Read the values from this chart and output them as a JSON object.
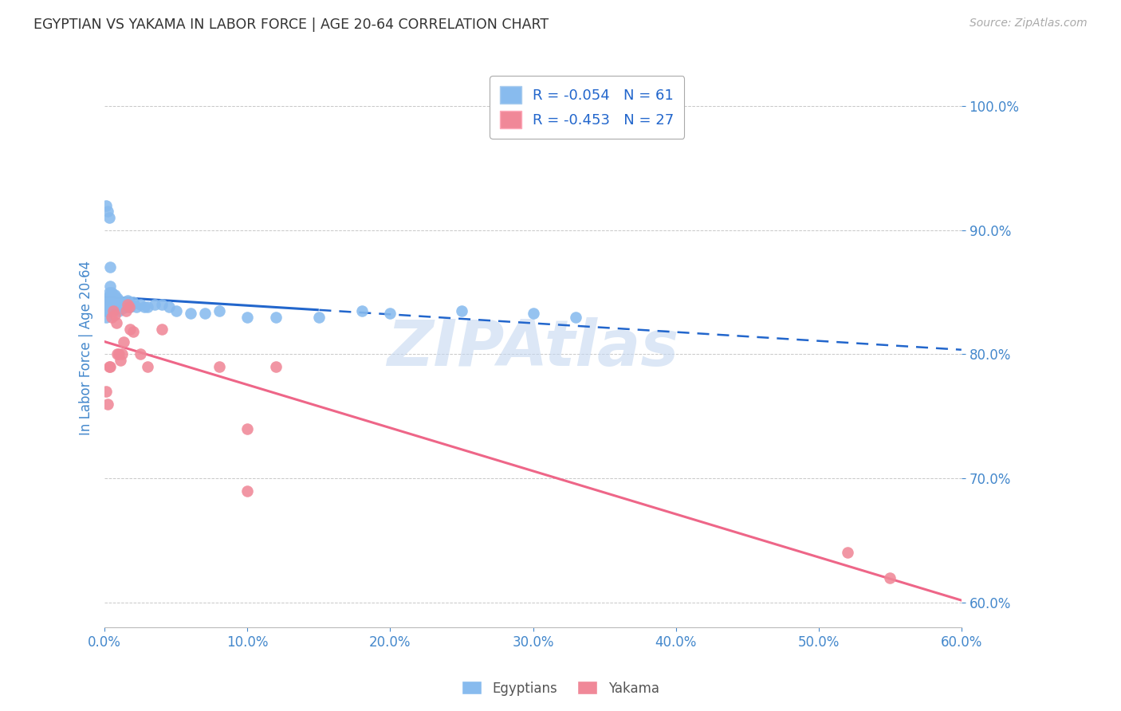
{
  "title": "EGYPTIAN VS YAKAMA IN LABOR FORCE | AGE 20-64 CORRELATION CHART",
  "source": "Source: ZipAtlas.com",
  "ylabel": "In Labor Force | Age 20-64",
  "xlim": [
    0.0,
    0.6
  ],
  "ylim": [
    0.58,
    1.03
  ],
  "yticks": [
    0.6,
    0.7,
    0.8,
    0.9,
    1.0
  ],
  "xticks": [
    0.0,
    0.1,
    0.2,
    0.3,
    0.4,
    0.5,
    0.6
  ],
  "background_color": "#ffffff",
  "grid_color": "#c8c8c8",
  "egyptian_color": "#88bbee",
  "yakama_color": "#f08898",
  "trendline_egyptian_color": "#2266cc",
  "trendline_yakama_color": "#ee6688",
  "watermark_color": "#c5d8f0",
  "legend_text_color": "#2266cc",
  "axis_label_color": "#4488cc",
  "title_color": "#333333",
  "source_color": "#aaaaaa",
  "R_egyptian": -0.054,
  "N_egyptian": 61,
  "R_yakama": -0.453,
  "N_yakama": 27,
  "egyptians_x": [
    0.001,
    0.001,
    0.001,
    0.002,
    0.002,
    0.002,
    0.003,
    0.003,
    0.003,
    0.004,
    0.004,
    0.005,
    0.005,
    0.005,
    0.006,
    0.006,
    0.007,
    0.007,
    0.008,
    0.008,
    0.009,
    0.009,
    0.01,
    0.01,
    0.01,
    0.011,
    0.011,
    0.012,
    0.012,
    0.013,
    0.014,
    0.015,
    0.015,
    0.016,
    0.017,
    0.018,
    0.019,
    0.02,
    0.022,
    0.025,
    0.028,
    0.03,
    0.035,
    0.04,
    0.045,
    0.05,
    0.06,
    0.07,
    0.08,
    0.1,
    0.12,
    0.15,
    0.18,
    0.2,
    0.25,
    0.3,
    0.001,
    0.002,
    0.003,
    0.004,
    0.33
  ],
  "egyptians_y": [
    0.84,
    0.835,
    0.83,
    0.845,
    0.84,
    0.835,
    0.85,
    0.845,
    0.84,
    0.855,
    0.848,
    0.85,
    0.843,
    0.838,
    0.848,
    0.842,
    0.848,
    0.843,
    0.842,
    0.838,
    0.845,
    0.84,
    0.843,
    0.84,
    0.835,
    0.84,
    0.838,
    0.842,
    0.837,
    0.84,
    0.838,
    0.842,
    0.838,
    0.843,
    0.84,
    0.838,
    0.84,
    0.842,
    0.838,
    0.84,
    0.838,
    0.838,
    0.84,
    0.84,
    0.838,
    0.835,
    0.833,
    0.833,
    0.835,
    0.83,
    0.83,
    0.83,
    0.835,
    0.833,
    0.835,
    0.833,
    0.92,
    0.915,
    0.91,
    0.87,
    0.83
  ],
  "yakama_x": [
    0.001,
    0.002,
    0.003,
    0.004,
    0.005,
    0.006,
    0.007,
    0.008,
    0.009,
    0.01,
    0.011,
    0.012,
    0.013,
    0.015,
    0.016,
    0.017,
    0.018,
    0.02,
    0.025,
    0.03,
    0.04,
    0.08,
    0.1,
    0.12,
    0.1,
    0.52,
    0.55
  ],
  "yakama_y": [
    0.77,
    0.76,
    0.79,
    0.79,
    0.83,
    0.835,
    0.832,
    0.825,
    0.8,
    0.8,
    0.795,
    0.8,
    0.81,
    0.835,
    0.84,
    0.838,
    0.82,
    0.818,
    0.8,
    0.79,
    0.82,
    0.79,
    0.74,
    0.79,
    0.69,
    0.64,
    0.62
  ]
}
